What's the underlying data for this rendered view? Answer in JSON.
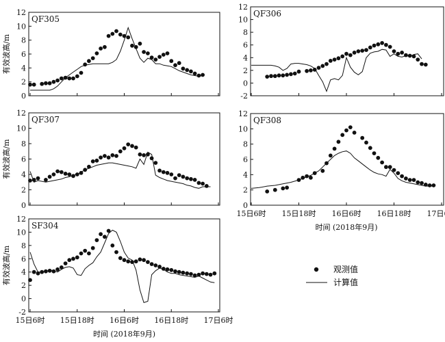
{
  "chart_data": [
    {
      "type": "scatter",
      "title": "QF305",
      "ylabel": "有效波高/m",
      "xlabel": "",
      "ylim": [
        0,
        12
      ],
      "yticks": [
        0,
        2,
        4,
        6,
        8,
        10,
        12
      ],
      "xlim": [
        0,
        48
      ],
      "series": [
        {
          "name": "观测值",
          "style": "dots",
          "x": [
            0,
            1,
            3,
            4,
            5,
            6,
            7,
            8,
            9,
            10,
            11,
            12,
            13,
            14,
            15,
            16,
            17,
            18,
            19,
            20,
            21,
            22,
            23,
            24,
            25,
            26,
            27,
            28,
            29,
            30,
            31,
            32,
            33,
            34,
            35,
            36,
            37,
            38,
            39,
            40,
            41,
            42,
            43,
            44
          ],
          "y": [
            1.6,
            1.6,
            1.7,
            1.8,
            1.8,
            2.0,
            2.2,
            2.5,
            2.6,
            2.5,
            2.5,
            2.8,
            3.3,
            4.5,
            5.0,
            5.4,
            6.1,
            6.8,
            7.0,
            8.6,
            8.9,
            9.3,
            8.8,
            8.6,
            8.4,
            7.2,
            7.0,
            7.5,
            6.3,
            6.1,
            5.5,
            5.2,
            5.6,
            5.9,
            6.1,
            5.0,
            4.4,
            4.7,
            3.9,
            3.7,
            3.5,
            3.2,
            2.9,
            3.0
          ]
        },
        {
          "name": "计算值",
          "style": "line",
          "x": [
            0,
            5,
            6,
            7,
            8,
            9,
            10,
            11,
            12,
            13,
            14,
            15,
            16,
            17,
            18,
            19,
            20,
            21,
            22,
            23,
            24,
            25,
            26,
            27,
            28,
            29,
            30,
            31,
            32,
            33,
            34,
            35,
            36,
            37,
            38,
            39,
            40,
            41,
            42,
            43,
            44
          ],
          "y": [
            0.8,
            0.8,
            1.0,
            1.4,
            2.0,
            2.6,
            3.0,
            3.4,
            3.8,
            4.2,
            4.4,
            4.5,
            4.6,
            4.6,
            4.6,
            4.6,
            4.6,
            4.8,
            5.2,
            6.4,
            8.0,
            9.8,
            8.2,
            6.8,
            5.4,
            4.8,
            5.4,
            5.2,
            4.6,
            4.6,
            4.4,
            4.3,
            4.2,
            3.9,
            3.6,
            3.4,
            3.2,
            3.0,
            2.9,
            2.8,
            2.9
          ]
        }
      ]
    },
    {
      "type": "scatter",
      "title": "QF306",
      "ylabel": "",
      "xlabel": "",
      "ylim": [
        -2,
        12
      ],
      "yticks": [
        -2,
        0,
        2,
        4,
        6,
        8,
        10,
        12
      ],
      "xlim": [
        0,
        48
      ],
      "series": [
        {
          "name": "观测值",
          "style": "dots",
          "x": [
            4,
            5,
            6,
            7,
            8,
            9,
            10,
            11,
            12,
            14,
            15,
            16,
            17,
            18,
            19,
            20,
            21,
            22,
            23,
            24,
            25,
            26,
            27,
            28,
            29,
            30,
            31,
            32,
            33,
            34,
            35,
            36,
            37,
            38,
            39,
            40,
            41,
            42,
            43,
            44
          ],
          "y": [
            1.0,
            1.1,
            1.1,
            1.2,
            1.2,
            1.3,
            1.4,
            1.5,
            1.8,
            1.9,
            2.0,
            2.1,
            2.4,
            2.7,
            3.0,
            3.5,
            3.7,
            3.9,
            4.2,
            4.6,
            4.4,
            4.8,
            5.0,
            5.1,
            5.2,
            5.6,
            5.9,
            6.1,
            6.3,
            6.0,
            5.7,
            5.0,
            4.6,
            4.8,
            4.4,
            4.3,
            4.2,
            3.7,
            3.0,
            2.9
          ]
        },
        {
          "name": "计算值",
          "style": "line",
          "x": [
            0,
            5,
            6,
            7,
            8,
            9,
            10,
            11,
            12,
            13,
            14,
            15,
            16,
            17,
            18,
            19,
            20,
            21,
            22,
            23,
            24,
            25,
            26,
            27,
            28,
            29,
            30,
            31,
            32,
            33,
            34,
            35,
            36,
            37,
            38,
            39,
            40,
            41,
            42,
            43
          ],
          "y": [
            2.8,
            2.8,
            2.7,
            2.5,
            2.0,
            2.3,
            3.0,
            3.1,
            3.1,
            3.0,
            2.9,
            2.7,
            2.3,
            1.2,
            0.2,
            -1.3,
            0.5,
            0.7,
            0.5,
            1.2,
            4.0,
            2.5,
            1.7,
            1.3,
            1.8,
            4.0,
            4.7,
            4.9,
            5.0,
            5.3,
            5.2,
            4.2,
            4.6,
            4.2,
            4.1,
            4.3,
            4.2,
            4.5,
            4.6,
            3.8
          ]
        }
      ]
    },
    {
      "type": "scatter",
      "title": "QF307",
      "ylabel": "有效波高/m",
      "xlabel": "",
      "ylim": [
        0,
        12
      ],
      "yticks": [
        0,
        2,
        4,
        6,
        8,
        10,
        12
      ],
      "xlim": [
        0,
        48
      ],
      "series": [
        {
          "name": "观测值",
          "style": "dots",
          "x": [
            0,
            1,
            2,
            4,
            5,
            6,
            7,
            8,
            9,
            10,
            11,
            12,
            13,
            14,
            15,
            16,
            17,
            18,
            19,
            20,
            21,
            22,
            23,
            24,
            25,
            26,
            27,
            28,
            29,
            30,
            31,
            32,
            33,
            34,
            35,
            36,
            37,
            38,
            39,
            40,
            41,
            42,
            43,
            44,
            45
          ],
          "y": [
            3.2,
            3.3,
            3.5,
            3.3,
            3.7,
            4.0,
            4.4,
            4.3,
            4.1,
            4.0,
            3.8,
            4.0,
            4.2,
            4.6,
            5.0,
            5.7,
            5.8,
            6.2,
            6.4,
            6.2,
            6.5,
            6.4,
            7.0,
            7.4,
            7.9,
            7.7,
            7.5,
            6.6,
            6.5,
            6.6,
            6.1,
            5.5,
            4.5,
            4.3,
            4.2,
            4.0,
            3.5,
            3.9,
            3.7,
            3.5,
            3.4,
            3.3,
            2.9,
            2.8,
            2.5
          ]
        },
        {
          "name": "计算值",
          "style": "line",
          "x": [
            0,
            1,
            2,
            3,
            4,
            5,
            6,
            7,
            8,
            9,
            10,
            11,
            12,
            13,
            14,
            15,
            16,
            17,
            18,
            19,
            20,
            21,
            22,
            23,
            24,
            25,
            26,
            27,
            28,
            29,
            30,
            31,
            32,
            33,
            34,
            35,
            36,
            37,
            38,
            39,
            40,
            41,
            42,
            43,
            44,
            45,
            46
          ],
          "y": [
            4.4,
            3.0,
            3.2,
            3.1,
            3.0,
            3.1,
            3.2,
            3.3,
            3.4,
            3.6,
            3.7,
            3.9,
            4.0,
            4.3,
            4.6,
            4.8,
            5.0,
            5.2,
            5.3,
            5.4,
            5.5,
            5.5,
            5.4,
            5.3,
            5.2,
            5.1,
            5.0,
            4.8,
            6.0,
            5.3,
            6.9,
            6.6,
            3.9,
            3.6,
            3.4,
            3.2,
            3.1,
            3.0,
            2.9,
            2.8,
            2.6,
            2.5,
            2.3,
            2.2,
            2.4,
            2.4,
            2.4
          ]
        }
      ]
    },
    {
      "type": "scatter",
      "title": "QF308",
      "ylabel": "",
      "xlabel": "时间 (2018年9月)",
      "ylim": [
        0,
        12
      ],
      "yticks": [
        0,
        2,
        4,
        6,
        8,
        10,
        12
      ],
      "xlim": [
        0,
        48
      ],
      "xticks": [
        0,
        12,
        24,
        36,
        48
      ],
      "xtick_labels": [
        "15日6时",
        "15日18时",
        "16日6时",
        "16日18时",
        "17日6时"
      ],
      "series": [
        {
          "name": "观测值",
          "style": "dots",
          "x": [
            4,
            6,
            8,
            9,
            12,
            13,
            14,
            15,
            16,
            18,
            19,
            20,
            21,
            22,
            23,
            24,
            25,
            26,
            28,
            29,
            30,
            31,
            32,
            33,
            34,
            35,
            36,
            37,
            38,
            39,
            40,
            41,
            42,
            43,
            44,
            45,
            46
          ],
          "y": [
            1.8,
            2.0,
            2.2,
            2.3,
            3.3,
            3.6,
            3.8,
            3.6,
            4.2,
            4.5,
            5.5,
            6.5,
            7.4,
            8.3,
            9.2,
            9.8,
            10.2,
            9.5,
            8.8,
            8.2,
            7.5,
            6.8,
            6.2,
            5.6,
            5.0,
            5.0,
            4.6,
            4.2,
            3.8,
            3.5,
            3.3,
            3.3,
            3.0,
            2.9,
            2.7,
            2.6,
            2.6
          ]
        },
        {
          "name": "计算值",
          "style": "line",
          "x": [
            0,
            2,
            4,
            6,
            8,
            10,
            12,
            13,
            14,
            15,
            16,
            17,
            18,
            19,
            20,
            21,
            22,
            23,
            24,
            25,
            26,
            27,
            28,
            29,
            30,
            31,
            32,
            33,
            34,
            35,
            36,
            37,
            38,
            39,
            40,
            41,
            42,
            43,
            44,
            45,
            46
          ],
          "y": [
            2.2,
            2.3,
            2.5,
            2.6,
            2.8,
            3.0,
            3.3,
            3.5,
            3.7,
            3.9,
            4.2,
            4.5,
            5.0,
            5.5,
            6.0,
            6.5,
            6.8,
            7.0,
            7.1,
            6.8,
            6.2,
            5.8,
            5.4,
            5.0,
            4.6,
            4.3,
            4.1,
            4.0,
            3.8,
            4.7,
            4.2,
            3.5,
            3.2,
            3.0,
            2.9,
            2.8,
            2.7,
            2.6,
            2.5,
            2.5,
            2.5
          ]
        }
      ]
    },
    {
      "type": "scatter",
      "title": "SF304",
      "ylabel": "有效波高/m",
      "xlabel": "时间 (2018年9月)",
      "ylim": [
        -2,
        12
      ],
      "yticks": [
        -2,
        0,
        2,
        4,
        6,
        8,
        10,
        12
      ],
      "xlim": [
        0,
        48
      ],
      "xticks": [
        0,
        12,
        24,
        36,
        48
      ],
      "xtick_labels": [
        "15日6时",
        "15日18时",
        "16日6时",
        "16日18时",
        "17日6时"
      ],
      "series": [
        {
          "name": "观测值",
          "style": "dots",
          "x": [
            0,
            1,
            2,
            3,
            4,
            5,
            6,
            7,
            8,
            9,
            10,
            11,
            12,
            13,
            14,
            15,
            16,
            17,
            18,
            19,
            20,
            21,
            22,
            23,
            24,
            25,
            26,
            27,
            28,
            29,
            30,
            31,
            32,
            33,
            34,
            35,
            36,
            37,
            38,
            39,
            40,
            41,
            42,
            43,
            44,
            45,
            46,
            47
          ],
          "y": [
            2.8,
            4.0,
            3.8,
            4.0,
            4.1,
            4.2,
            4.1,
            4.4,
            4.7,
            5.3,
            5.8,
            6.0,
            6.2,
            6.8,
            7.2,
            6.8,
            7.6,
            8.8,
            9.7,
            9.3,
            10.2,
            8.0,
            7.0,
            6.1,
            5.8,
            5.6,
            5.5,
            5.6,
            5.9,
            5.8,
            5.5,
            5.2,
            5.0,
            4.8,
            4.5,
            4.4,
            4.3,
            4.1,
            4.0,
            3.9,
            3.8,
            3.7,
            3.5,
            3.6,
            3.8,
            3.7,
            3.6,
            3.8
          ]
        },
        {
          "name": "计算值",
          "style": "line",
          "x": [
            0,
            1,
            2,
            3,
            4,
            5,
            6,
            7,
            8,
            9,
            10,
            11,
            12,
            13,
            14,
            15,
            16,
            17,
            18,
            19,
            20,
            21,
            22,
            23,
            24,
            25,
            26,
            27,
            28,
            29,
            30,
            31,
            32,
            33,
            34,
            35,
            36,
            37,
            38,
            39,
            40,
            41,
            42,
            43,
            44,
            45,
            46,
            47
          ],
          "y": [
            7.0,
            5.2,
            4.0,
            4.0,
            4.1,
            4.3,
            4.2,
            4.0,
            4.4,
            4.7,
            4.8,
            4.6,
            3.6,
            3.5,
            4.5,
            5.0,
            5.4,
            6.3,
            7.0,
            8.4,
            9.8,
            10.3,
            10.0,
            8.6,
            7.0,
            6.1,
            5.8,
            4.3,
            1.3,
            -0.6,
            -0.4,
            3.6,
            4.2,
            4.6,
            4.4,
            4.0,
            3.8,
            3.8,
            3.6,
            3.5,
            3.4,
            3.3,
            3.2,
            3.4,
            3.1,
            2.8,
            2.5,
            2.4
          ]
        }
      ]
    }
  ],
  "legend": {
    "items": [
      {
        "label": "观测值",
        "marker": "dot"
      },
      {
        "label": "计算值",
        "marker": "line"
      }
    ]
  },
  "colors": {
    "ink": "#111111",
    "background": "#ffffff"
  }
}
